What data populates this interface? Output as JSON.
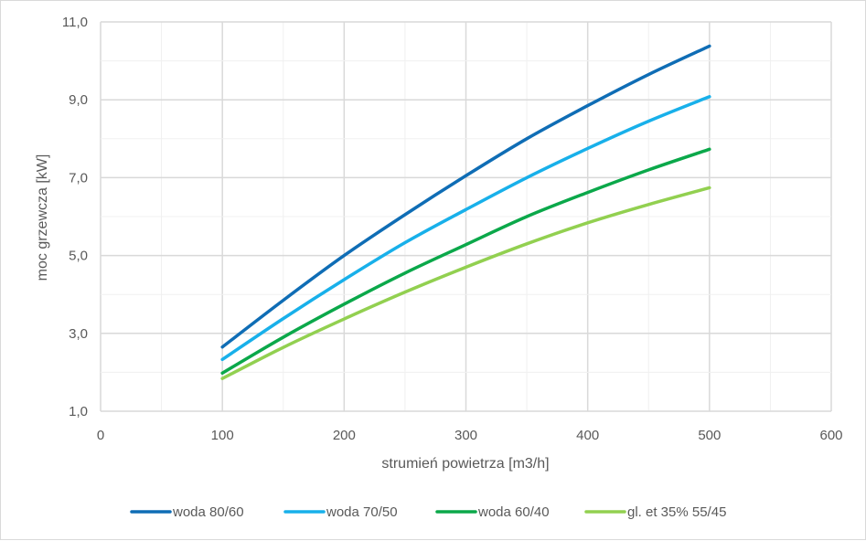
{
  "chart_data": {
    "type": "line",
    "title": "",
    "xlabel": "strumień powietrza [m3/h]",
    "ylabel": "moc grzewcza [kW]",
    "xlim": [
      0,
      600
    ],
    "ylim": [
      1.0,
      11.0
    ],
    "x_ticks": [
      "0",
      "100",
      "200",
      "300",
      "400",
      "500",
      "600"
    ],
    "y_ticks": [
      "1,0",
      "3,0",
      "5,0",
      "7,0",
      "9,0",
      "11,0"
    ],
    "grid": true,
    "legend_position": "bottom",
    "x": [
      100,
      150,
      200,
      250,
      300,
      350,
      400,
      450,
      500
    ],
    "series": [
      {
        "name": "woda 80/60",
        "color": "#0F6DB5",
        "values": [
          2.65,
          3.85,
          5.0,
          6.05,
          7.05,
          8.0,
          8.85,
          9.65,
          10.38
        ]
      },
      {
        "name": "woda 70/50",
        "color": "#18B0EA",
        "values": [
          2.33,
          3.38,
          4.38,
          5.33,
          6.18,
          7.0,
          7.75,
          8.45,
          9.08
        ]
      },
      {
        "name": "woda 60/40",
        "color": "#0BA84A",
        "values": [
          1.98,
          2.9,
          3.75,
          4.55,
          5.28,
          6.0,
          6.62,
          7.2,
          7.73
        ]
      },
      {
        "name": "gl. et 35% 55/45",
        "color": "#92D050",
        "values": [
          1.84,
          2.64,
          3.37,
          4.06,
          4.7,
          5.3,
          5.84,
          6.31,
          6.74
        ]
      }
    ]
  }
}
